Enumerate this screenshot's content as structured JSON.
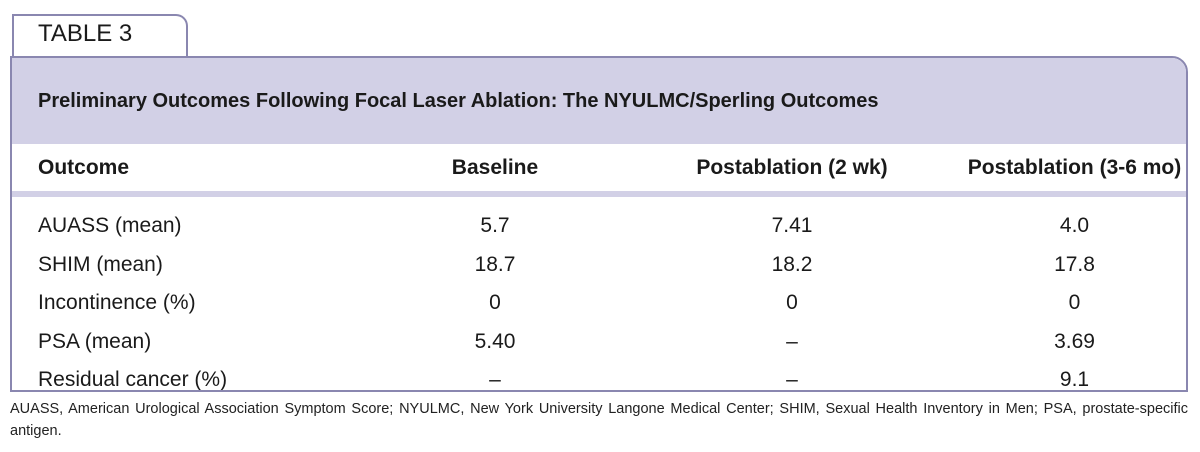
{
  "tab_label": "TABLE 3",
  "title": "Preliminary Outcomes Following Focal Laser Ablation: The NYULMC/Sperling Outcomes",
  "table": {
    "header": [
      "Outcome",
      "Baseline",
      "Postablation (2 wk)",
      "Postablation (3-6 mo)"
    ],
    "rows": [
      [
        "AUASS (mean)",
        "5.7",
        "7.41",
        "4.0"
      ],
      [
        "SHIM (mean)",
        "18.7",
        "18.2",
        "17.8"
      ],
      [
        "Incontinence (%)",
        "0",
        "0",
        "0"
      ],
      [
        "PSA (mean)",
        "5.40",
        "–",
        "3.69"
      ],
      [
        "Residual cancer (%)",
        "–",
        "–",
        "9.1"
      ]
    ]
  },
  "footnote": "AUASS, American Urological Association Symptom Score; NYULMC, New York University Langone Medical Center; SHIM, Sexual Health Inventory in Men; PSA, prostate-specific antigen."
}
